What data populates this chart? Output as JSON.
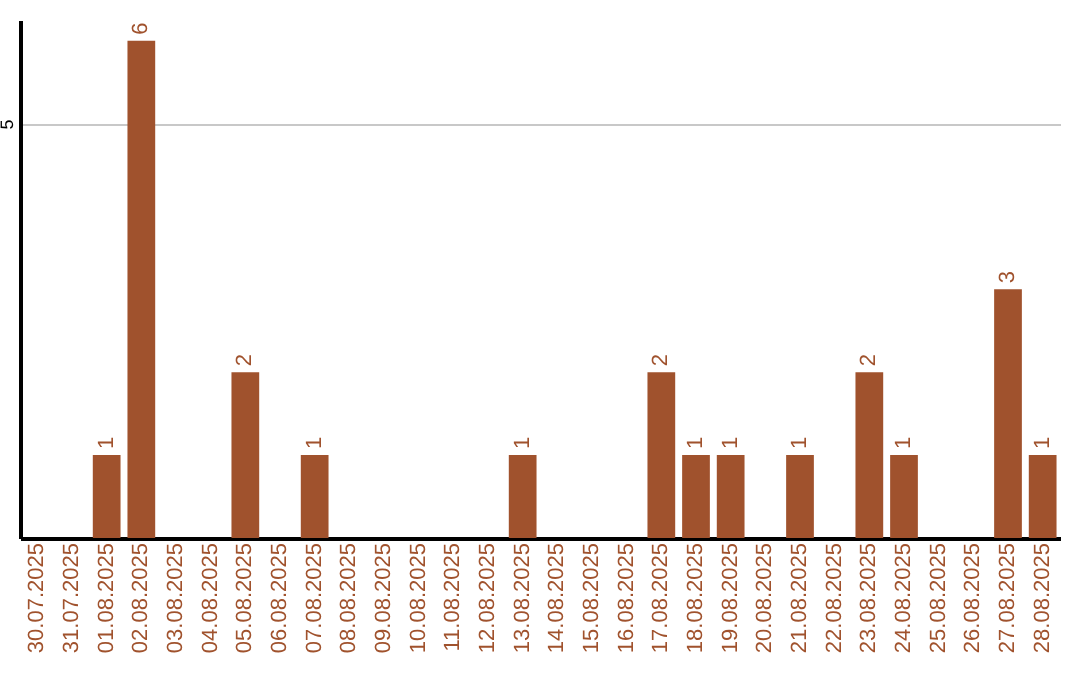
{
  "chart_data": {
    "type": "bar",
    "categories": [
      "30.07.2025",
      "31.07.2025",
      "01.08.2025",
      "02.08.2025",
      "03.08.2025",
      "04.08.2025",
      "05.08.2025",
      "06.08.2025",
      "07.08.2025",
      "08.08.2025",
      "09.08.2025",
      "10.08.2025",
      "11.08.2025",
      "12.08.2025",
      "13.08.2025",
      "14.08.2025",
      "15.08.2025",
      "16.08.2025",
      "17.08.2025",
      "18.08.2025",
      "19.08.2025",
      "20.08.2025",
      "21.08.2025",
      "22.08.2025",
      "23.08.2025",
      "24.08.2025",
      "25.08.2025",
      "26.08.2025",
      "27.08.2025",
      "28.08.2025"
    ],
    "values": [
      0,
      0,
      1,
      6,
      0,
      0,
      2,
      0,
      1,
      0,
      0,
      0,
      0,
      0,
      1,
      0,
      0,
      0,
      2,
      1,
      1,
      0,
      1,
      0,
      2,
      1,
      0,
      0,
      3,
      1
    ],
    "value_labels": [
      null,
      null,
      "1",
      "6",
      null,
      null,
      "2",
      null,
      "1",
      null,
      null,
      null,
      null,
      null,
      "1",
      null,
      null,
      null,
      "2",
      "1",
      "1",
      null,
      "1",
      null,
      "2",
      "1",
      null,
      null,
      "3",
      "1"
    ],
    "color": "#a0522d",
    "ylim": [
      0,
      6.25
    ],
    "yticks": [
      5
    ],
    "grid": "y"
  }
}
